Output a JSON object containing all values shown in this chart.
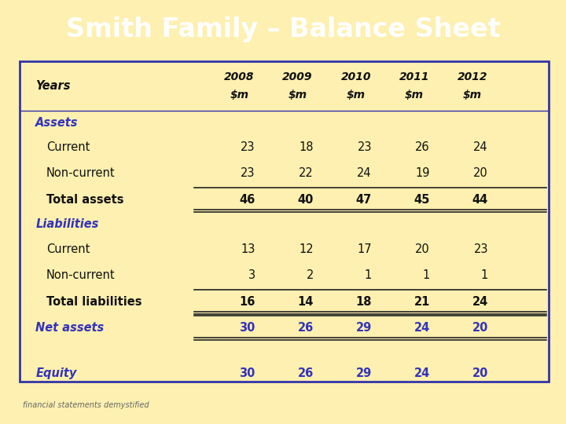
{
  "title": "Smith Family – Balance Sheet",
  "title_bg": "#4040cc",
  "title_color": "#ffffff",
  "fig_bg": "#fdf0b0",
  "table_bg": "#fdf0b0",
  "table_border_color": "#3333aa",
  "body_text_color": "#111111",
  "section_label_color": "#3333bb",
  "line_color": "#222222",
  "footer_text": "financial statements demystified",
  "footer_color": "#666666",
  "header_row": [
    "Years",
    "2008\n$m",
    "2009\n$m",
    "2010\n$m",
    "2011\n$m",
    "2012\n$m"
  ],
  "rows": [
    {
      "label": "Assets",
      "type": "section",
      "values": [
        null,
        null,
        null,
        null,
        null
      ]
    },
    {
      "label": "Current",
      "type": "data",
      "values": [
        23,
        18,
        23,
        26,
        24
      ]
    },
    {
      "label": "Non-current",
      "type": "data",
      "values": [
        23,
        22,
        24,
        19,
        20
      ]
    },
    {
      "label": "Total assets",
      "type": "total",
      "values": [
        46,
        40,
        47,
        45,
        44
      ]
    },
    {
      "label": "Liabilities",
      "type": "section",
      "values": [
        null,
        null,
        null,
        null,
        null
      ]
    },
    {
      "label": "Current",
      "type": "data",
      "values": [
        13,
        12,
        17,
        20,
        23
      ]
    },
    {
      "label": "Non-current",
      "type": "data",
      "values": [
        3,
        2,
        1,
        1,
        1
      ]
    },
    {
      "label": "Total liabilities",
      "type": "total",
      "values": [
        16,
        14,
        18,
        21,
        24
      ]
    },
    {
      "label": "Net assets",
      "type": "net",
      "values": [
        30,
        26,
        29,
        24,
        20
      ]
    },
    {
      "label": "",
      "type": "blank",
      "values": [
        null,
        null,
        null,
        null,
        null
      ]
    },
    {
      "label": "Equity",
      "type": "equity",
      "values": [
        30,
        26,
        29,
        24,
        20
      ]
    }
  ]
}
